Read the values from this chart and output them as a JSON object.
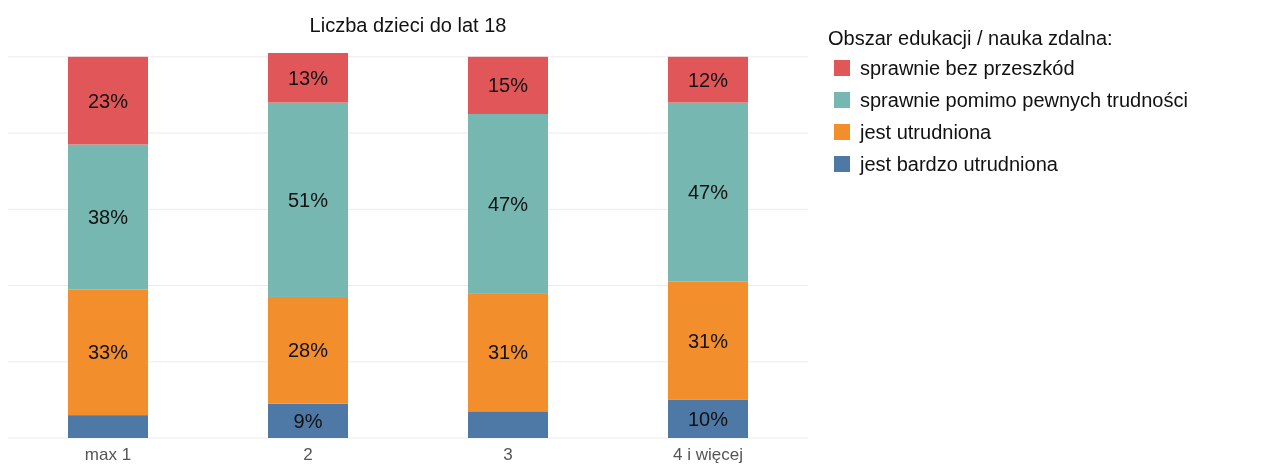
{
  "chart_data": {
    "type": "bar",
    "title": "Liczba dzieci do lat 18",
    "legend_title": "Obszar edukacji / nauka zdalna:",
    "categories": [
      "max 1",
      "2",
      "3",
      "4 i więcej"
    ],
    "stacked": true,
    "ylim": [
      0,
      101
    ],
    "yticks": [
      {
        "value": 0,
        "label": null
      },
      {
        "value": 20,
        "label": null
      },
      {
        "value": 40,
        "label": null
      },
      {
        "value": 60,
        "label": null
      },
      {
        "value": 80,
        "label": null
      },
      {
        "value": 100,
        "label": null
      }
    ],
    "tick_labels": "x",
    "grid": "y",
    "legend": "right",
    "series": [
      {
        "name": "jest bardzo utrudniona",
        "color": "#4e79a7",
        "values": [
          6,
          9,
          7,
          10
        ],
        "value_labels": [
          null,
          "9%",
          null,
          "10%"
        ]
      },
      {
        "name": "jest utrudniona",
        "color": "#f28e2b",
        "values": [
          33,
          28,
          31,
          31
        ],
        "value_labels": [
          "33%",
          "28%",
          "31%",
          "31%"
        ]
      },
      {
        "name": "sprawnie pomimo pewnych trudności",
        "color": "#76b7b2",
        "values": [
          38,
          51,
          47,
          47
        ],
        "value_labels": [
          "38%",
          "51%",
          "47%",
          "47%"
        ]
      },
      {
        "name": "sprawnie bez przeszkód",
        "color": "#e15759",
        "values": [
          23,
          13,
          15,
          12
        ],
        "value_labels": [
          "23%",
          "13%",
          "15%",
          "12%"
        ]
      }
    ]
  }
}
